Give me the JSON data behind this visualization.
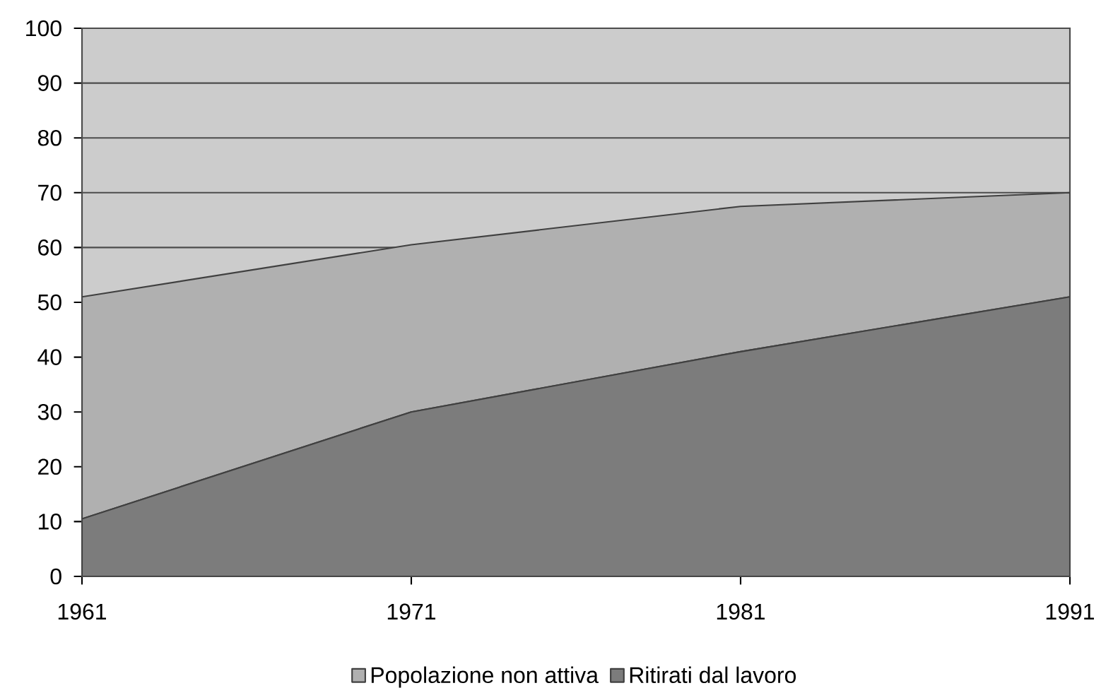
{
  "chart_data": {
    "type": "area",
    "stacked": true,
    "categories": [
      "1961",
      "1971",
      "1981",
      "1991"
    ],
    "series": [
      {
        "name": "Ritirati dal lavoro",
        "color": "#7c7c7c",
        "values": [
          10.5,
          30,
          41,
          51
        ]
      },
      {
        "name": "Popolazione non attiva",
        "color": "#b0b0b0",
        "values": [
          40.5,
          30.5,
          26.5,
          19
        ]
      }
    ],
    "ylim": [
      0,
      100
    ],
    "yticks": [
      0,
      10,
      20,
      30,
      40,
      50,
      60,
      70,
      80,
      90,
      100
    ],
    "grid": "y",
    "legend": "bottom"
  }
}
